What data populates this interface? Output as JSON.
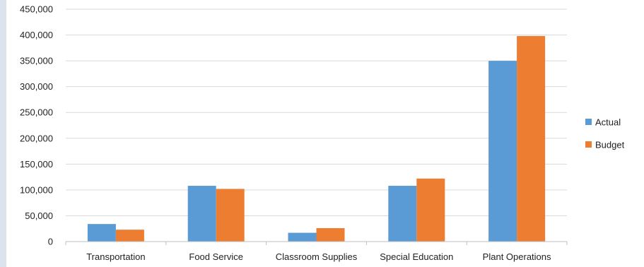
{
  "chart_data": {
    "type": "bar",
    "categories": [
      "Transportation",
      "Food Service",
      "Classroom Supplies",
      "Special Education",
      "Plant Operations"
    ],
    "series": [
      {
        "name": "Actual",
        "color": "#5b9bd5",
        "values": [
          34000,
          108000,
          17000,
          108000,
          350000
        ]
      },
      {
        "name": "Budget",
        "color": "#ed7d31",
        "values": [
          23000,
          102000,
          26000,
          122000,
          398000
        ]
      }
    ],
    "ylim": [
      0,
      450000
    ],
    "yticks": [
      0,
      50000,
      100000,
      150000,
      200000,
      250000,
      300000,
      350000,
      400000,
      450000
    ],
    "ytick_labels": [
      "0",
      "50,000",
      "100,000",
      "150,000",
      "200,000",
      "250,000",
      "300,000",
      "350,000",
      "400,000",
      "450,000"
    ],
    "grid": true,
    "legend": "right",
    "title": "",
    "xlabel": "",
    "ylabel": ""
  }
}
